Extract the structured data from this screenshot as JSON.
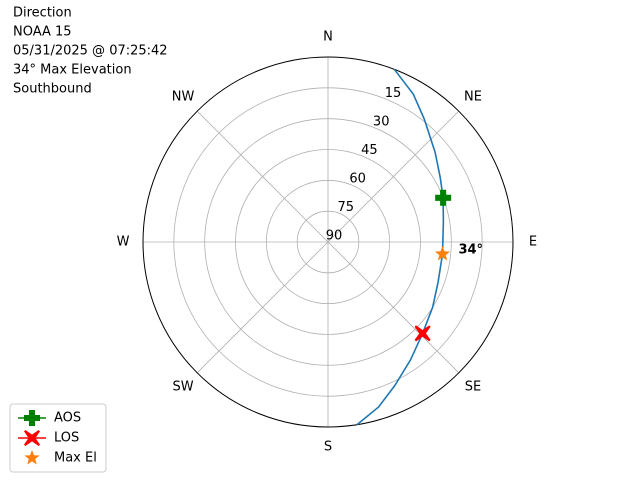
{
  "chart_data": {
    "type": "polar",
    "title_lines": [
      "Direction",
      "NOAA 15",
      "05/31/2025 @ 07:25:42",
      "34° Max Elevation",
      "Southbound"
    ],
    "theta_zero": "N",
    "theta_direction": "clockwise",
    "xticks": [
      {
        "value": 0,
        "label": "N"
      },
      {
        "value": 45,
        "label": "NE"
      },
      {
        "value": 90,
        "label": "E"
      },
      {
        "value": 135,
        "label": "SE"
      },
      {
        "value": 180,
        "label": "S"
      },
      {
        "value": 225,
        "label": "SW"
      },
      {
        "value": 270,
        "label": "W"
      },
      {
        "value": 315,
        "label": "NW"
      }
    ],
    "rlim": [
      90,
      0
    ],
    "rticks": [
      15,
      30,
      45,
      60,
      75,
      90
    ],
    "grid": true,
    "series": [
      {
        "color": "#1f77b4",
        "x": [
          21,
          30,
          38,
          50,
          60,
          69,
          80,
          96,
          110,
          122,
          134,
          145,
          155,
          163,
          171
        ],
        "values": [
          0,
          7,
          14,
          22,
          27,
          30,
          33,
          34,
          33,
          30,
          26,
          20,
          13,
          6,
          0
        ]
      }
    ],
    "markers": [
      {
        "name": "AOS",
        "color": "#008000",
        "marker": "plus",
        "line": true,
        "x": [
          69
        ],
        "values": [
          30
        ]
      },
      {
        "name": "LOS",
        "color": "#ff0000",
        "marker": "x",
        "line": true,
        "x": [
          134
        ],
        "values": [
          26
        ]
      },
      {
        "name": "Max El",
        "color": "#ff7f0e",
        "marker": "star",
        "line": false,
        "x": [
          96
        ],
        "values": [
          34
        ],
        "value_labels": [
          "34°"
        ]
      }
    ],
    "legend": "lower left"
  }
}
